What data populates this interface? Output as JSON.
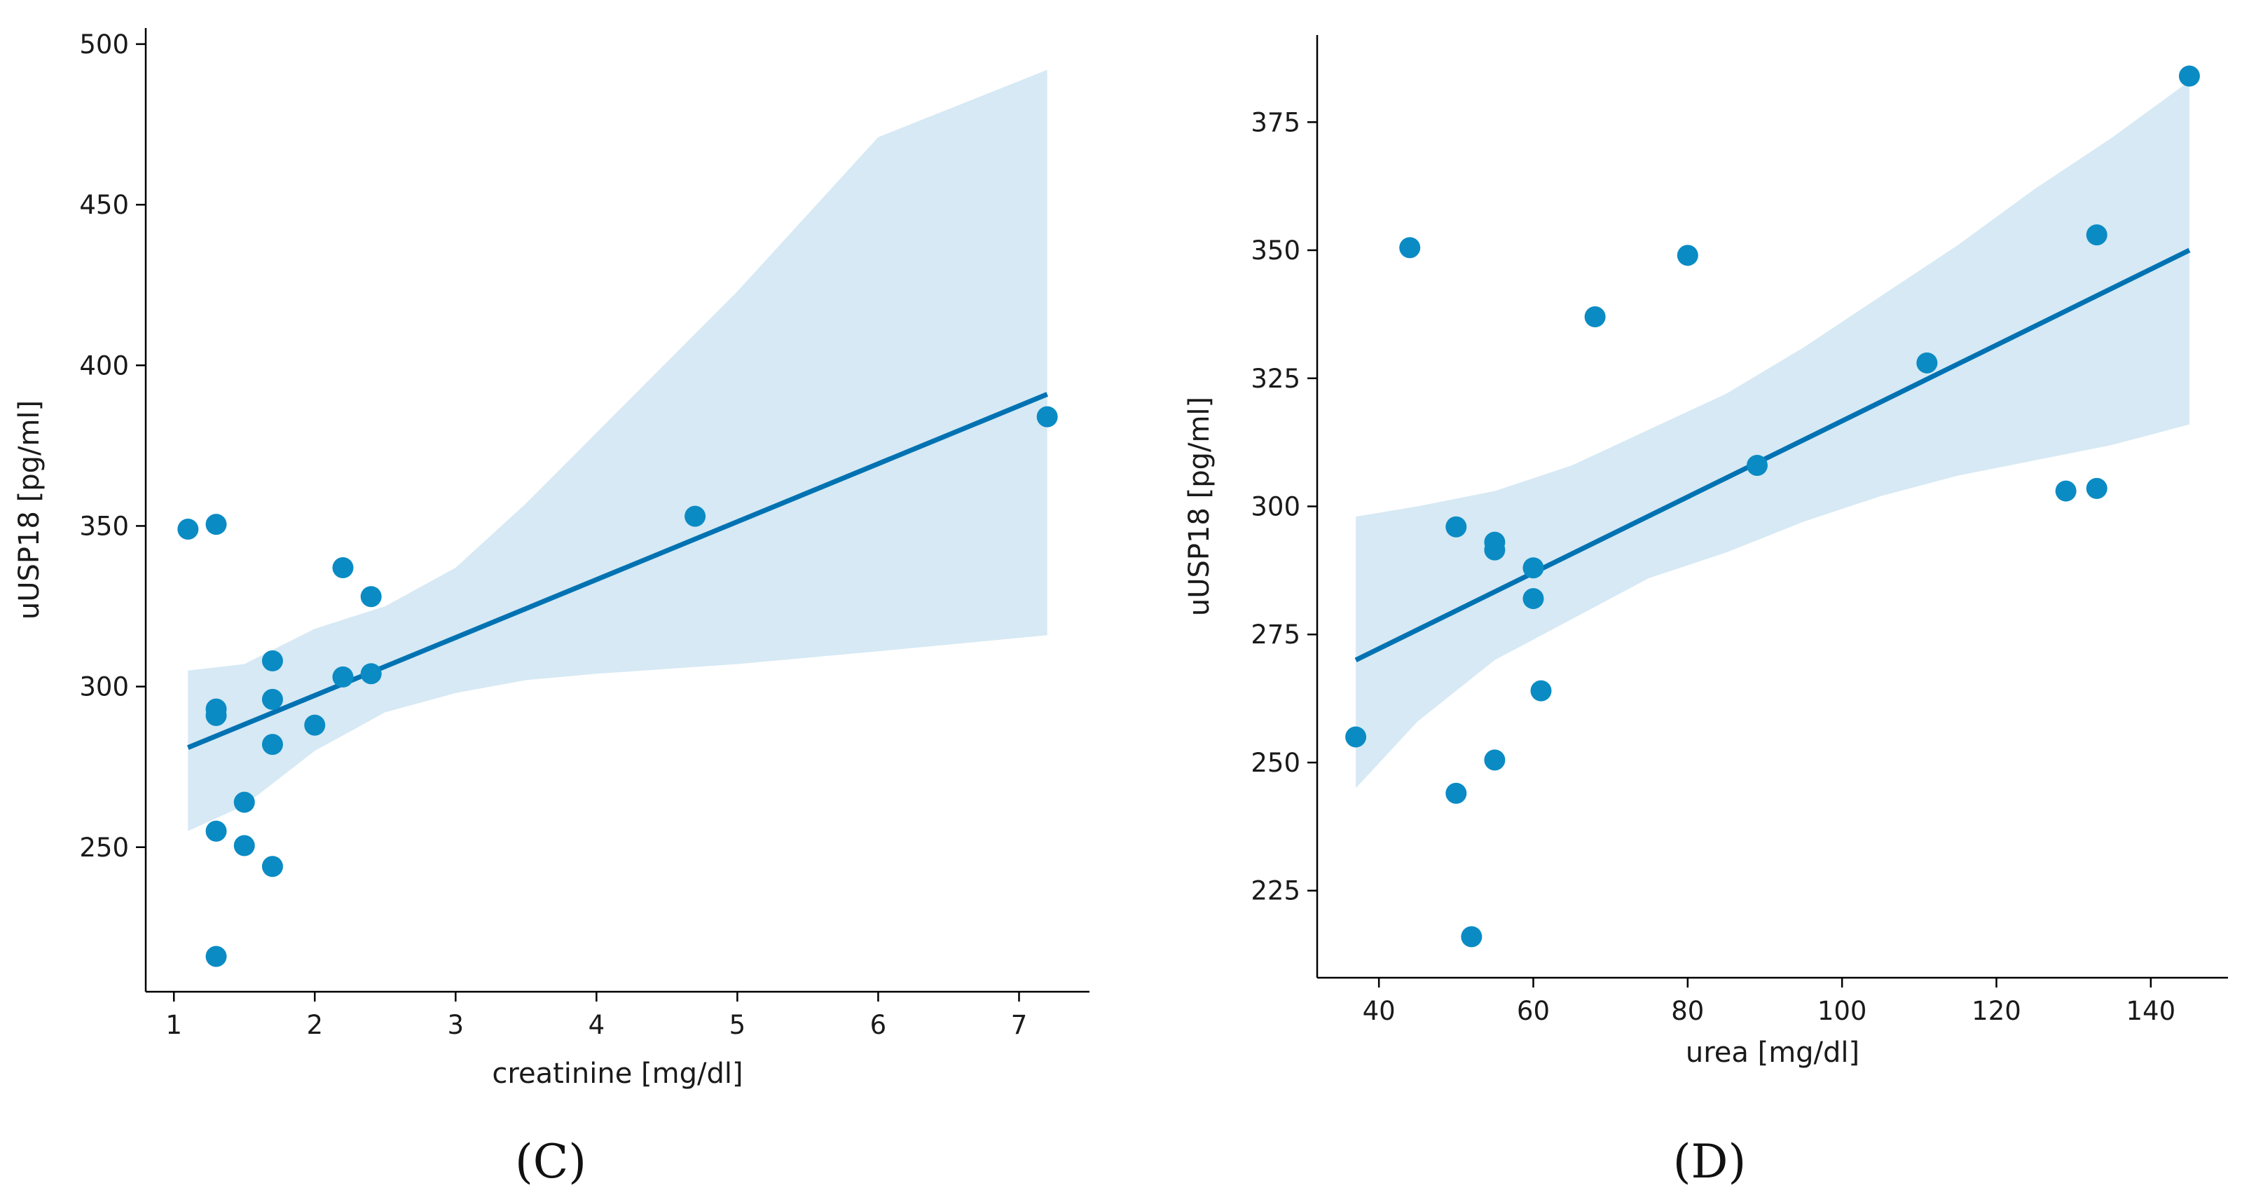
{
  "colors": {
    "point": "#0a8bc4",
    "line": "#0072b2",
    "band": "#d6e9f4"
  },
  "chart_data": [
    {
      "type": "scatter",
      "panel_label": "(C)",
      "title": "",
      "xlabel": "creatinine [mg/dl]",
      "ylabel": "uUSP18 [pg/ml]",
      "xlim": [
        0.8,
        7.5
      ],
      "ylim": [
        205,
        505
      ],
      "xticks": [
        1,
        2,
        3,
        4,
        5,
        6,
        7
      ],
      "yticks": [
        250,
        300,
        350,
        400,
        450,
        500
      ],
      "points": [
        {
          "x": 1.1,
          "y": 349
        },
        {
          "x": 1.3,
          "y": 350.5
        },
        {
          "x": 1.3,
          "y": 293
        },
        {
          "x": 1.3,
          "y": 291
        },
        {
          "x": 1.3,
          "y": 255
        },
        {
          "x": 1.3,
          "y": 216
        },
        {
          "x": 1.5,
          "y": 264
        },
        {
          "x": 1.5,
          "y": 250.5
        },
        {
          "x": 1.7,
          "y": 308
        },
        {
          "x": 1.7,
          "y": 296
        },
        {
          "x": 1.7,
          "y": 282
        },
        {
          "x": 1.7,
          "y": 244
        },
        {
          "x": 2.0,
          "y": 288
        },
        {
          "x": 2.2,
          "y": 337
        },
        {
          "x": 2.2,
          "y": 303
        },
        {
          "x": 2.4,
          "y": 328
        },
        {
          "x": 2.4,
          "y": 304
        },
        {
          "x": 4.7,
          "y": 353
        },
        {
          "x": 7.2,
          "y": 384
        }
      ],
      "regression": {
        "x": [
          1.1,
          7.2
        ],
        "y": [
          281,
          391
        ]
      },
      "confidence_band": {
        "x": [
          1.1,
          1.5,
          2.0,
          2.5,
          3.0,
          3.5,
          4.0,
          5.0,
          6.0,
          7.2
        ],
        "upper": [
          305,
          307,
          318,
          325,
          337,
          357,
          379,
          423,
          471,
          492
        ],
        "lower": [
          255,
          263,
          280,
          292,
          298,
          302,
          304,
          307,
          311,
          316
        ]
      }
    },
    {
      "type": "scatter",
      "panel_label": "(D)",
      "title": "",
      "xlabel": "urea [mg/dl]",
      "ylabel": "uUSP18 [pg/ml]",
      "xlim": [
        32,
        150
      ],
      "ylim": [
        208,
        392
      ],
      "xticks": [
        40,
        60,
        80,
        100,
        120,
        140
      ],
      "yticks": [
        225,
        250,
        275,
        300,
        325,
        350,
        375
      ],
      "points": [
        {
          "x": 37,
          "y": 255
        },
        {
          "x": 44,
          "y": 350.5
        },
        {
          "x": 50,
          "y": 296
        },
        {
          "x": 50,
          "y": 244
        },
        {
          "x": 52,
          "y": 216
        },
        {
          "x": 55,
          "y": 293
        },
        {
          "x": 55,
          "y": 291.5
        },
        {
          "x": 55,
          "y": 250.5
        },
        {
          "x": 60,
          "y": 288
        },
        {
          "x": 60,
          "y": 282
        },
        {
          "x": 61,
          "y": 264
        },
        {
          "x": 68,
          "y": 337
        },
        {
          "x": 80,
          "y": 349
        },
        {
          "x": 89,
          "y": 308
        },
        {
          "x": 111,
          "y": 328
        },
        {
          "x": 129,
          "y": 303
        },
        {
          "x": 133,
          "y": 303.5
        },
        {
          "x": 133,
          "y": 353
        },
        {
          "x": 145,
          "y": 384
        }
      ],
      "regression": {
        "x": [
          37,
          145
        ],
        "y": [
          270,
          350
        ]
      },
      "confidence_band": {
        "x": [
          37,
          45,
          55,
          65,
          75,
          85,
          95,
          105,
          115,
          125,
          135,
          145
        ],
        "upper": [
          298,
          300,
          303,
          308,
          315,
          322,
          331,
          341,
          351,
          362,
          372,
          383
        ],
        "lower": [
          245,
          258,
          270,
          278,
          286,
          291,
          297,
          302,
          306,
          309,
          312,
          316
        ]
      }
    }
  ]
}
